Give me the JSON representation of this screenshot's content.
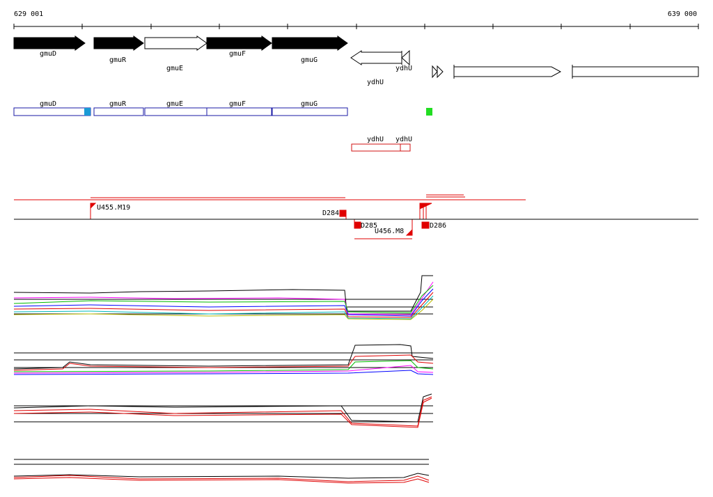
{
  "ruler": {
    "start": "629 001",
    "end": "639 000"
  },
  "genes": [
    "gmuD",
    "gmuR",
    "gmuE",
    "gmuF",
    "gmuG",
    "ydhU",
    "ydhU"
  ],
  "annotations": [
    "gmuD",
    "gmuR",
    "gmuE",
    "gmuF",
    "gmuG"
  ],
  "rna_features": [
    "ydhU",
    "ydhU"
  ],
  "transcripts": [
    "U455.M19",
    "D284",
    "D285",
    "U456.M8",
    "D286"
  ]
}
